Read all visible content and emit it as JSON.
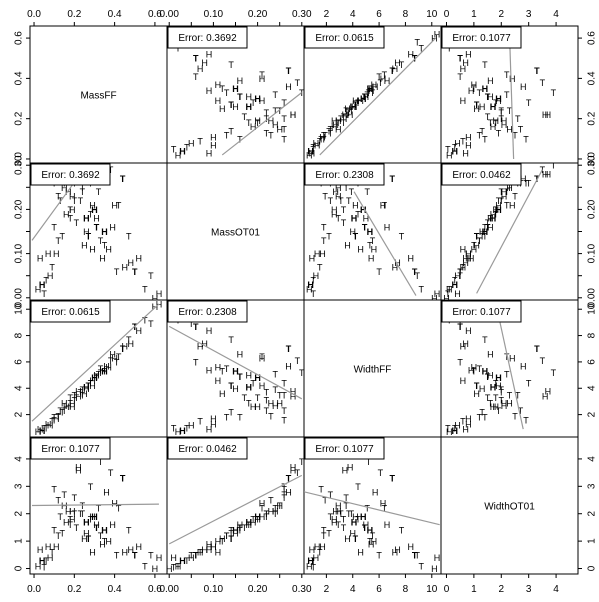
{
  "chart_data": {
    "type": "scatter",
    "variables": [
      "MassFF",
      "MassOT01",
      "WidthFF",
      "WidthOT01"
    ],
    "axes": {
      "MassFF": {
        "range": [
          -0.02,
          0.66
        ],
        "ticks": [
          0.0,
          0.2,
          0.4,
          0.6
        ],
        "labels": [
          "0.0",
          "0.2",
          "0.4",
          "0.6"
        ]
      },
      "MassOT01": {
        "range": [
          -0.005,
          0.305
        ],
        "ticks": [
          0.0,
          0.1,
          0.2,
          0.3
        ],
        "labels": [
          "0.00",
          "0.10",
          "0.20",
          "0.30"
        ],
        "minor_ticks": [
          0.05,
          0.15,
          0.25
        ]
      },
      "WidthFF": {
        "range": [
          0.3,
          10.7
        ],
        "ticks": [
          2,
          4,
          6,
          8,
          10
        ],
        "labels": [
          "2",
          "4",
          "6",
          "8",
          "10"
        ]
      },
      "WidthOT01": {
        "range": [
          -0.2,
          4.8
        ],
        "ticks": [
          0,
          1,
          2,
          3,
          4
        ],
        "labels": [
          "0",
          "1",
          "2",
          "3",
          "4"
        ]
      }
    },
    "pairs": [
      {
        "row": "MassFF",
        "col": "MassOT01",
        "error": "Error: 0.3692",
        "fit": {
          "x": [
            0.12,
            0.3
          ],
          "y": [
            0.02,
            0.33
          ]
        }
      },
      {
        "row": "MassFF",
        "col": "WidthFF",
        "error": "Error: 0.0615",
        "fit": {
          "x": [
            1.5,
            10.3
          ],
          "y": [
            0.02,
            0.6
          ]
        }
      },
      {
        "row": "MassFF",
        "col": "WidthOT01",
        "error": "Error: 0.1077",
        "fit": {
          "x": [
            2.3,
            2.45
          ],
          "y": [
            0.62,
            0.0
          ]
        }
      },
      {
        "row": "MassOT01",
        "col": "MassFF",
        "error": "Error: 0.3692",
        "fit": {
          "x": [
            -0.01,
            0.23
          ],
          "y": [
            0.13,
            0.28
          ]
        }
      },
      {
        "row": "MassOT01",
        "col": "WidthFF",
        "error": "Error: 0.2308",
        "fit": {
          "x": [
            4.1,
            8.8
          ],
          "y": [
            0.24,
            0.005
          ]
        }
      },
      {
        "row": "MassOT01",
        "col": "WidthOT01",
        "error": "Error: 0.0462",
        "fit": {
          "x": [
            1.1,
            3.5
          ],
          "y": [
            0.01,
            0.29
          ]
        }
      },
      {
        "row": "WidthFF",
        "col": "MassFF",
        "error": "Error: 0.0615",
        "fit": {
          "x": [
            -0.01,
            0.62
          ],
          "y": [
            1.5,
            10.4
          ]
        }
      },
      {
        "row": "WidthFF",
        "col": "MassOT01",
        "error": "Error: 0.2308",
        "fit": {
          "x": [
            0.0,
            0.3
          ],
          "y": [
            8.7,
            3.2
          ]
        }
      },
      {
        "row": "WidthFF",
        "col": "WidthOT01",
        "error": "Error: 0.1077",
        "fit": {
          "x": [
            1.9,
            2.8
          ],
          "y": [
            9.5,
            0.9
          ]
        }
      },
      {
        "row": "WidthOT01",
        "col": "MassFF",
        "error": "Error: 0.1077",
        "fit": {
          "x": [
            -0.01,
            0.62
          ],
          "y": [
            2.3,
            2.35
          ]
        }
      },
      {
        "row": "WidthOT01",
        "col": "MassOT01",
        "error": "Error: 0.0462",
        "fit": {
          "x": [
            0.0,
            0.3
          ],
          "y": [
            0.9,
            3.4
          ]
        }
      },
      {
        "row": "WidthOT01",
        "col": "WidthFF",
        "error": "Error: 0.1077",
        "fit": {
          "x": [
            0.3,
            10.6
          ],
          "y": [
            2.8,
            1.6
          ]
        }
      }
    ],
    "markers": [
      "H",
      "T"
    ],
    "observations": {
      "MassFF": [
        0.04,
        0.07,
        0.1,
        0.13,
        0.15,
        0.18,
        0.2,
        0.22,
        0.24,
        0.27,
        0.29,
        0.31,
        0.33,
        0.35,
        0.36,
        0.38,
        0.42,
        0.48,
        0.5,
        0.08,
        0.12,
        0.16,
        0.19,
        0.21,
        0.23,
        0.26,
        0.28,
        0.3,
        0.32,
        0.34,
        0.25,
        0.18,
        0.14,
        0.11,
        0.06,
        0.4,
        0.44,
        0.02,
        0.05,
        0.09,
        0.6,
        0.62,
        0.55,
        0.17,
        0.28,
        0.31,
        0.22,
        0.12,
        0.37,
        0.45,
        0.58,
        0.03,
        0.15,
        0.2,
        0.26,
        0.33,
        0.39,
        0.47,
        0.52,
        0.24,
        0.29,
        0.19,
        0.1,
        0.35,
        0.41
      ],
      "MassOT01": [
        0.03,
        0.1,
        0.16,
        0.22,
        0.25,
        0.2,
        0.26,
        0.28,
        0.24,
        0.14,
        0.11,
        0.18,
        0.3,
        0.12,
        0.27,
        0.29,
        0.21,
        0.08,
        0.06,
        0.05,
        0.13,
        0.19,
        0.23,
        0.17,
        0.22,
        0.15,
        0.26,
        0.2,
        0.24,
        0.09,
        0.12,
        0.18,
        0.14,
        0.1,
        0.04,
        0.21,
        0.27,
        0.02,
        0.01,
        0.07,
        0.0,
        0.01,
        0.02,
        0.24,
        0.19,
        0.16,
        0.28,
        0.23,
        0.11,
        0.07,
        0.05,
        0.09,
        0.26,
        0.22,
        0.18,
        0.13,
        0.16,
        0.14,
        0.09,
        0.25,
        0.21,
        0.2,
        0.26,
        0.15,
        0.06
      ],
      "WidthFF": [
        0.8,
        1.3,
        1.8,
        2.3,
        2.9,
        3.3,
        3.5,
        3.8,
        3.9,
        4.2,
        4.6,
        5.0,
        5.2,
        5.3,
        5.7,
        6.1,
        6.4,
        7.4,
        8.7,
        1.2,
        1.8,
        2.6,
        2.9,
        3.3,
        3.7,
        4.0,
        4.4,
        4.8,
        5.1,
        5.4,
        3.6,
        2.9,
        2.2,
        1.7,
        1.0,
        6.3,
        7.0,
        0.7,
        1.0,
        1.5,
        10.2,
        10.4,
        9.2,
        2.7,
        4.4,
        4.9,
        3.4,
        1.9,
        5.6,
        7.2,
        8.9,
        0.9,
        2.3,
        3.1,
        4.1,
        5.5,
        6.6,
        7.7,
        8.4,
        3.5,
        4.2,
        2.6,
        1.6,
        5.3,
        6.0
      ],
      "WidthOT01": [
        0.3,
        0.8,
        1.4,
        1.9,
        2.3,
        1.8,
        2.6,
        3.7,
        2.0,
        1.1,
        0.6,
        1.6,
        3.9,
        1.0,
        2.8,
        3.5,
        2.2,
        0.7,
        0.5,
        0.4,
        1.2,
        1.7,
        2.1,
        1.5,
        2.0,
        1.3,
        3.0,
        1.9,
        2.2,
        0.9,
        1.1,
        1.6,
        1.3,
        0.8,
        0.3,
        2.4,
        3.3,
        0.1,
        0.05,
        0.6,
        0.0,
        0.4,
        0.1,
        2.1,
        1.8,
        1.5,
        3.6,
        2.5,
        1.0,
        0.6,
        0.5,
        0.7,
        2.7,
        2.0,
        1.7,
        1.2,
        1.6,
        1.4,
        0.8,
        2.3,
        1.9,
        1.8,
        2.9,
        1.4,
        0.5
      ]
    },
    "marker_assignment": "HHTTHTTHTTHHTTHTTHTHTHHTTHTHTHHTTHTHTHTTHHTHTTHTHHTHTTHTHTHTHHTHT"
  }
}
